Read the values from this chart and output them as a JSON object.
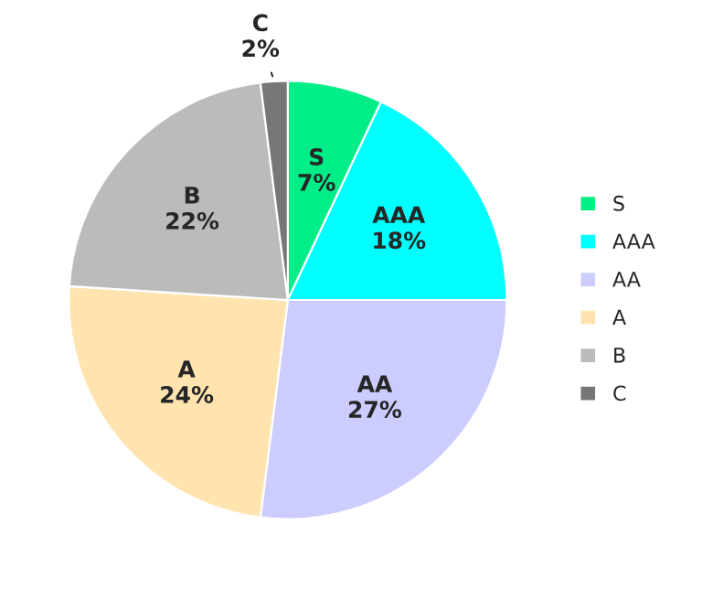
{
  "chart_data": {
    "type": "pie",
    "categories": [
      "S",
      "AAA",
      "AA",
      "A",
      "B",
      "C"
    ],
    "values": [
      7,
      18,
      27,
      24,
      22,
      2
    ],
    "colors": [
      "#00ee88",
      "#00ffff",
      "#ccccff",
      "#ffe4b0",
      "#bbbbbb",
      "#777777"
    ],
    "value_labels": [
      "7%",
      "18%",
      "27%",
      "24%",
      "22%",
      "2%"
    ],
    "legend": "right"
  }
}
